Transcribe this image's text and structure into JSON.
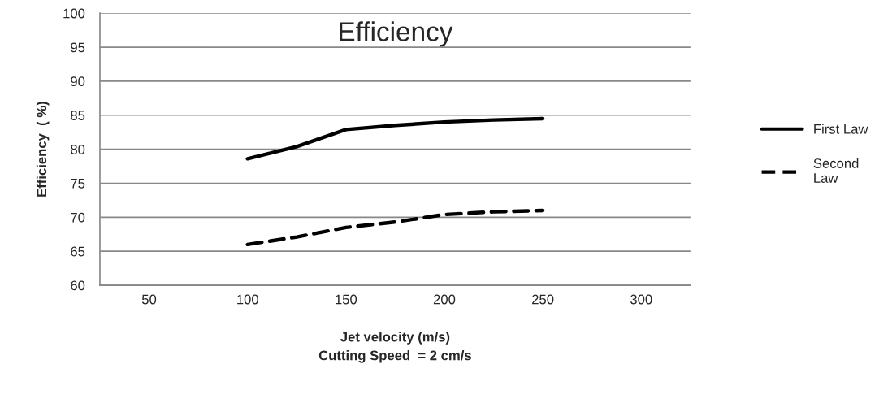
{
  "chart_data": {
    "type": "line",
    "title": "Efficiency",
    "xlabel": "Jet velocity (m/s)\nCutting Speed  = 2 cm/s",
    "ylabel": "Efficiency  ( %)",
    "x": [
      100,
      125,
      150,
      175,
      200,
      225,
      250
    ],
    "series": [
      {
        "name": "First Law",
        "color": "#000000",
        "line_style": "solid",
        "values": [
          78.6,
          80.4,
          82.9,
          83.5,
          84.0,
          84.3,
          84.5
        ]
      },
      {
        "name": "Second Law",
        "color": "#000000",
        "line_style": "dashed",
        "values": [
          66.0,
          67.1,
          68.5,
          69.3,
          70.4,
          70.8,
          71.0
        ]
      }
    ],
    "xlim": [
      25,
      325
    ],
    "xticks": [
      50,
      100,
      150,
      200,
      250,
      300
    ],
    "ylim": [
      60,
      100
    ],
    "yticks": [
      60,
      65,
      70,
      75,
      80,
      85,
      90,
      95,
      100
    ],
    "grid": "y",
    "legend": "right",
    "marker": "none"
  }
}
